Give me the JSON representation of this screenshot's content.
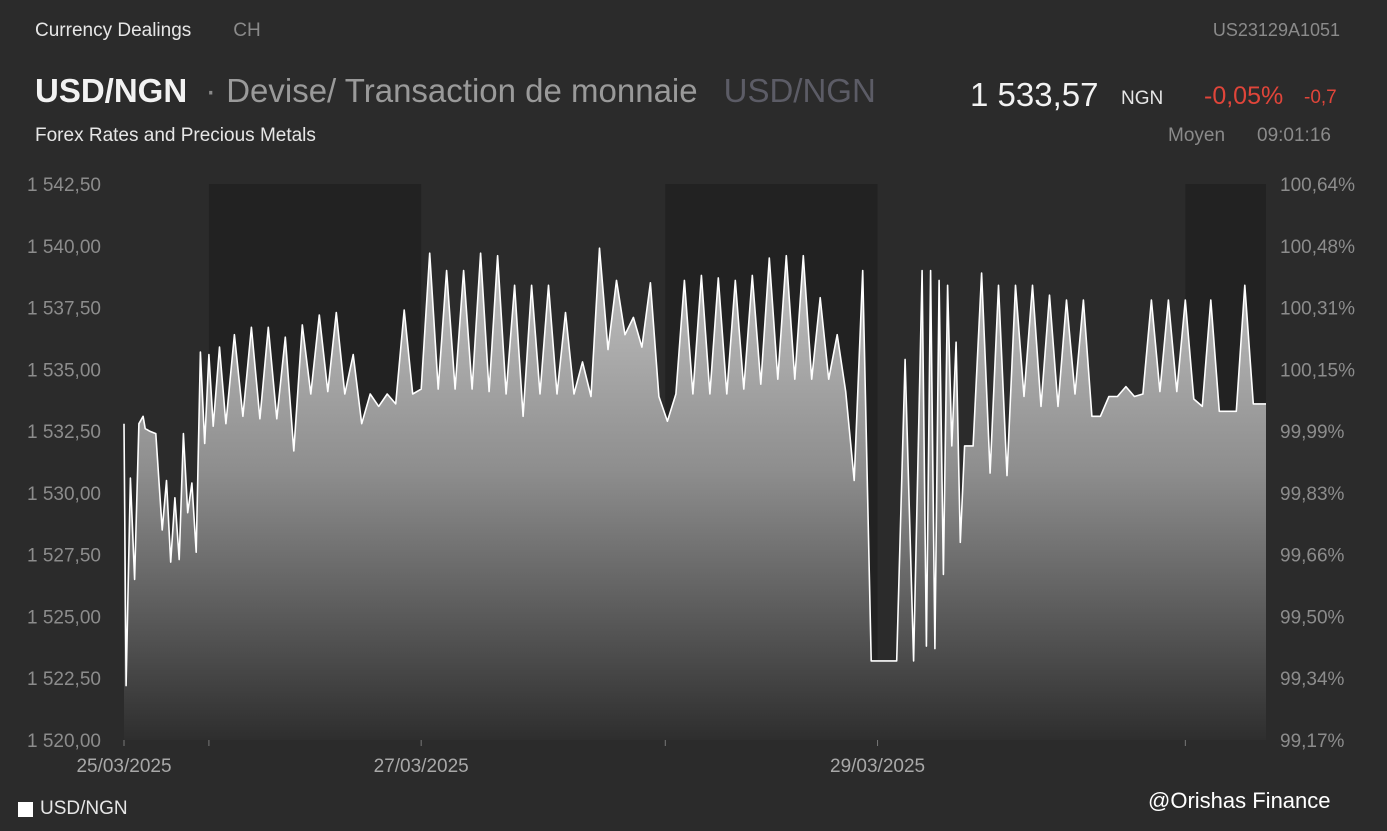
{
  "header": {
    "section": "Currency Dealings",
    "market": "CH",
    "isin": "US23129A1051",
    "symbol": "USD/NGN",
    "separator": "·",
    "description": "Devise/ Transaction de monnaie",
    "symbol_secondary": "USD/NGN",
    "price": "1 533,57",
    "unit": "NGN",
    "change_pct": "-0,05%",
    "change_abs": "-0,7",
    "subtitle": "Forex Rates and Precious Metals",
    "price_type": "Moyen",
    "time": "09:01:16"
  },
  "legend": {
    "label": "USD/NGN"
  },
  "watermark": "@Orishas Finance",
  "colors": {
    "background": "#2b2b2b",
    "negative": "#e0453a",
    "line": "#ffffff",
    "shade": "#222222"
  },
  "chart_data": {
    "type": "area",
    "title": "",
    "xlabel": "",
    "ylabel": "",
    "ylim": [
      1520,
      1542.5
    ],
    "y_ticks": [
      "1 520,00",
      "1 522,50",
      "1 525,00",
      "1 527,50",
      "1 530,00",
      "1 532,50",
      "1 535,00",
      "1 537,50",
      "1 540,00",
      "1 542,50"
    ],
    "y2_ticks": [
      "99,17%",
      "99,34%",
      "99,50%",
      "99,66%",
      "99,83%",
      "99,99%",
      "100,15%",
      "100,31%",
      "100,48%",
      "100,64%"
    ],
    "x_ticks": [
      "25/03/2025",
      "27/03/2025",
      "29/03/2025"
    ],
    "x_range": [
      0,
      5.38
    ],
    "x_tick_positions": [
      0,
      1.4,
      3.55
    ],
    "shaded_ranges": [
      [
        0.4,
        1.4
      ],
      [
        2.55,
        3.55
      ],
      [
        5.0,
        5.38
      ]
    ],
    "grid": false,
    "legend_position": "bottom-left",
    "series": [
      {
        "name": "USD/NGN",
        "x": [
          0,
          0.01,
          0.03,
          0.05,
          0.07,
          0.09,
          0.1,
          0.12,
          0.15,
          0.18,
          0.2,
          0.22,
          0.24,
          0.26,
          0.28,
          0.3,
          0.32,
          0.34,
          0.36,
          0.38,
          0.4,
          0.42,
          0.45,
          0.48,
          0.52,
          0.56,
          0.6,
          0.64,
          0.68,
          0.72,
          0.76,
          0.8,
          0.84,
          0.88,
          0.92,
          0.96,
          1.0,
          1.04,
          1.08,
          1.12,
          1.16,
          1.2,
          1.24,
          1.28,
          1.32,
          1.36,
          1.4,
          1.44,
          1.48,
          1.52,
          1.56,
          1.6,
          1.64,
          1.68,
          1.72,
          1.76,
          1.8,
          1.84,
          1.88,
          1.92,
          1.96,
          2.0,
          2.04,
          2.08,
          2.12,
          2.16,
          2.2,
          2.24,
          2.28,
          2.32,
          2.36,
          2.4,
          2.44,
          2.48,
          2.52,
          2.56,
          2.6,
          2.64,
          2.68,
          2.72,
          2.76,
          2.8,
          2.84,
          2.88,
          2.92,
          2.96,
          3.0,
          3.04,
          3.08,
          3.12,
          3.16,
          3.2,
          3.24,
          3.28,
          3.32,
          3.36,
          3.4,
          3.44,
          3.48,
          3.52,
          3.54,
          3.55,
          3.6,
          3.64,
          3.68,
          3.72,
          3.76,
          3.78,
          3.8,
          3.82,
          3.84,
          3.86,
          3.88,
          3.9,
          3.92,
          3.94,
          3.96,
          3.98,
          4.0,
          4.04,
          4.08,
          4.12,
          4.16,
          4.2,
          4.24,
          4.28,
          4.32,
          4.36,
          4.4,
          4.44,
          4.48,
          4.52,
          4.56,
          4.6,
          4.64,
          4.68,
          4.72,
          4.76,
          4.8,
          4.84,
          4.88,
          4.92,
          4.96,
          5.0,
          5.04,
          5.08,
          5.12,
          5.16,
          5.2,
          5.24,
          5.28,
          5.32,
          5.38
        ],
        "values": [
          1532.8,
          1522.2,
          1530.6,
          1526.5,
          1532.8,
          1533.1,
          1532.6,
          1532.5,
          1532.4,
          1528.5,
          1530.5,
          1527.2,
          1529.8,
          1527.3,
          1532.4,
          1529.2,
          1530.4,
          1527.6,
          1535.7,
          1532.0,
          1535.6,
          1532.7,
          1535.9,
          1532.8,
          1536.4,
          1533.1,
          1536.7,
          1533.0,
          1536.7,
          1533.0,
          1536.3,
          1531.7,
          1536.8,
          1534.0,
          1537.2,
          1534.1,
          1537.3,
          1534.0,
          1535.6,
          1532.8,
          1534.0,
          1533.5,
          1534.0,
          1533.6,
          1537.4,
          1534.0,
          1534.2,
          1539.7,
          1534.2,
          1539.0,
          1534.2,
          1539.0,
          1534.2,
          1539.7,
          1534.1,
          1539.6,
          1534.0,
          1538.4,
          1533.1,
          1538.4,
          1534.0,
          1538.4,
          1534.0,
          1537.3,
          1534.0,
          1535.3,
          1533.9,
          1539.9,
          1535.8,
          1538.6,
          1536.4,
          1537.1,
          1535.9,
          1538.5,
          1533.9,
          1532.9,
          1534.0,
          1538.6,
          1534.0,
          1538.8,
          1534.0,
          1538.7,
          1534.0,
          1538.6,
          1534.2,
          1538.8,
          1534.4,
          1539.5,
          1534.6,
          1539.6,
          1534.6,
          1539.6,
          1534.6,
          1537.9,
          1534.6,
          1536.4,
          1534.1,
          1530.5,
          1539.0,
          1523.2,
          1523.2,
          1523.2,
          1523.2,
          1523.2,
          1535.4,
          1523.2,
          1539.0,
          1523.8,
          1539.0,
          1523.7,
          1538.6,
          1526.7,
          1538.4,
          1531.9,
          1536.1,
          1528.0,
          1531.9,
          1531.9,
          1531.9,
          1538.9,
          1530.8,
          1538.4,
          1530.7,
          1538.4,
          1533.9,
          1538.4,
          1533.5,
          1538.0,
          1533.5,
          1537.8,
          1534.0,
          1537.8,
          1533.1,
          1533.1,
          1533.9,
          1533.9,
          1534.3,
          1533.9,
          1534.0,
          1537.8,
          1534.1,
          1537.8,
          1534.1,
          1537.8,
          1533.8,
          1533.5,
          1537.8,
          1533.3,
          1533.3,
          1533.3,
          1538.4,
          1533.6,
          1533.6
        ]
      }
    ]
  }
}
